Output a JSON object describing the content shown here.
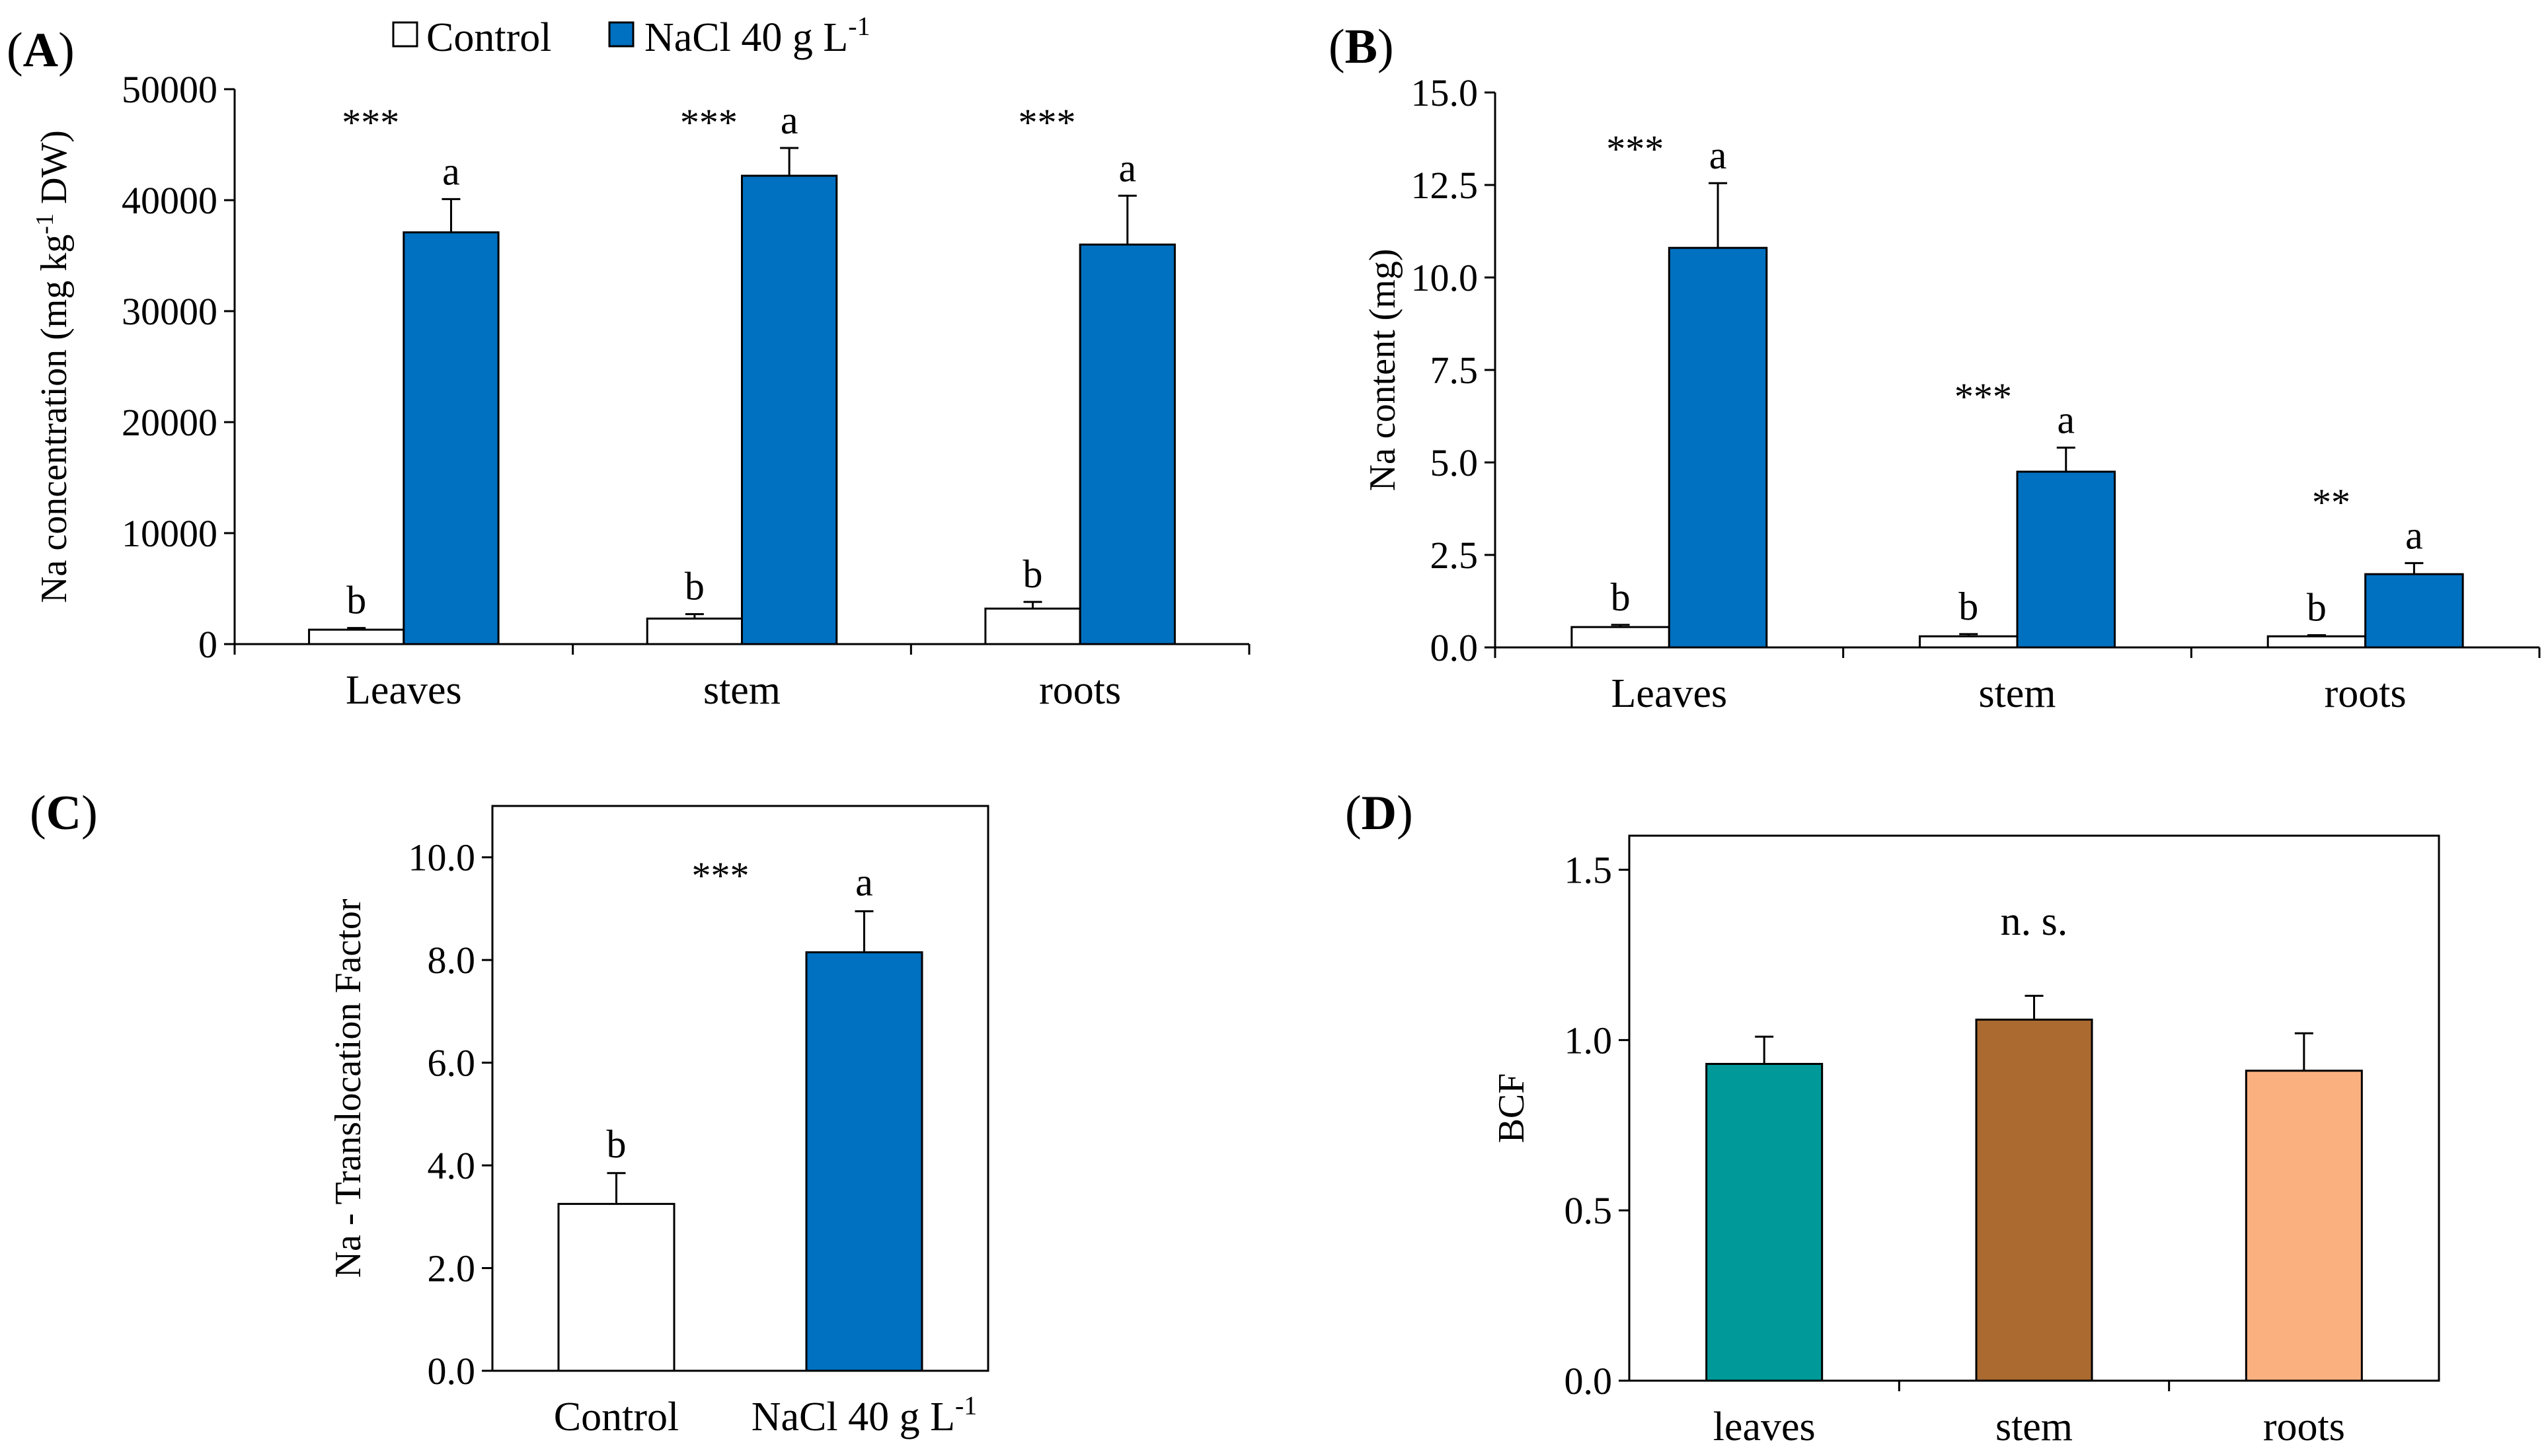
{
  "legend": {
    "control_label": "Control",
    "nacl_label": "NaCl 40 g L",
    "nacl_sup": "-1"
  },
  "colors": {
    "control": "#ffffff",
    "nacl": "#0070c0",
    "leaves_bcf": "#009999",
    "stem_bcf": "#aa6a30",
    "roots_bcf": "#fbb17f"
  },
  "chart_data": [
    {
      "panel": "A",
      "type": "bar",
      "ylabel": "Na concentration (mg kg-1 DW)",
      "ylabel_main": "Na concentration (mg kg",
      "ylabel_sup": "-1",
      "ylabel_tail": " DW)",
      "ylim": [
        0,
        50000
      ],
      "yticks": [
        "0",
        "10000",
        "20000",
        "30000",
        "40000",
        "50000"
      ],
      "categories": [
        "Leaves",
        "stem",
        "roots"
      ],
      "series": [
        {
          "name": "Control",
          "values": [
            1300,
            2300,
            3200
          ],
          "errors": [
            150,
            400,
            600
          ],
          "letters": [
            "b",
            "b",
            "b"
          ]
        },
        {
          "name": "NaCl 40 g L-1",
          "values": [
            37100,
            42200,
            36000
          ],
          "errors": [
            3000,
            2500,
            4400
          ],
          "letters": [
            "a",
            "a",
            "a"
          ]
        }
      ],
      "significance": [
        "***",
        "***",
        "***"
      ]
    },
    {
      "panel": "B",
      "type": "bar",
      "ylabel": "Na content (mg)",
      "ylim": [
        0,
        15
      ],
      "yticks": [
        "0.0",
        "2.5",
        "5.0",
        "7.5",
        "10.0",
        "12.5",
        "15.0"
      ],
      "categories": [
        "Leaves",
        "stem",
        "roots"
      ],
      "series": [
        {
          "name": "Control",
          "values": [
            0.55,
            0.3,
            0.3
          ],
          "errors": [
            0.06,
            0.06,
            0.03
          ],
          "letters": [
            "b",
            "b",
            "b"
          ]
        },
        {
          "name": "NaCl 40 g L-1",
          "values": [
            10.8,
            4.75,
            1.98
          ],
          "errors": [
            1.75,
            0.65,
            0.3
          ],
          "letters": [
            "a",
            "a",
            "a"
          ]
        }
      ],
      "significance": [
        "***",
        "***",
        "**"
      ]
    },
    {
      "panel": "C",
      "type": "bar",
      "ylabel": "Na - Translocation Factor",
      "ylim": [
        0,
        11
      ],
      "yticks": [
        "0.0",
        "2.0",
        "4.0",
        "6.0",
        "8.0",
        "10.0"
      ],
      "categories": [
        "Control",
        "NaCl 40 g L-1"
      ],
      "category_main": [
        "Control",
        "NaCl 40 g L"
      ],
      "category_sup": [
        "",
        "-1"
      ],
      "values": [
        3.25,
        8.15
      ],
      "errors": [
        0.6,
        0.8
      ],
      "letters": [
        "b",
        "a"
      ],
      "significance": "***"
    },
    {
      "panel": "D",
      "type": "bar",
      "ylabel": "BCF",
      "ylim": [
        0,
        1.6
      ],
      "yticks": [
        "0.0",
        "0.5",
        "1.0",
        "1.5"
      ],
      "categories": [
        "leaves",
        "stem",
        "roots"
      ],
      "values": [
        0.93,
        1.06,
        0.91
      ],
      "errors": [
        0.08,
        0.07,
        0.11
      ],
      "annotation": "n. s."
    }
  ]
}
